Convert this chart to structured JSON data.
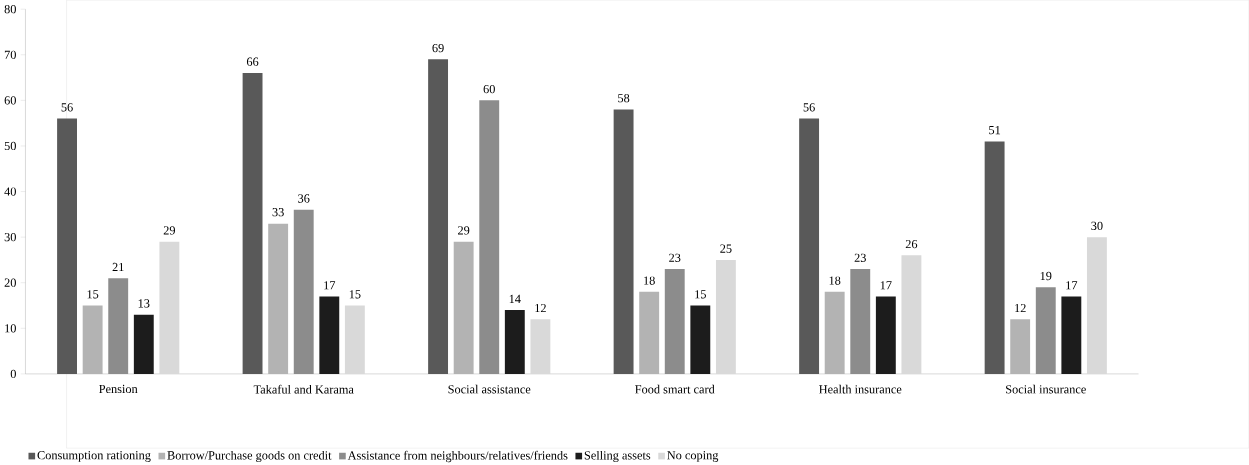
{
  "chart_data": {
    "type": "bar",
    "categories": [
      "Pension",
      "Takaful and Karama",
      "Social assistance",
      "Food smart card",
      "Health insurance",
      "Social insurance"
    ],
    "series": [
      {
        "name": "Consumption rationing",
        "color": "#595959",
        "values": [
          56,
          66,
          69,
          58,
          56,
          51
        ]
      },
      {
        "name": "Borrow/Purchase goods on credit",
        "color": "#b3b3b3",
        "values": [
          15,
          33,
          29,
          18,
          18,
          12
        ]
      },
      {
        "name": "Assistance from neighbours/relatives/friends",
        "color": "#8c8c8c",
        "values": [
          21,
          36,
          60,
          23,
          23,
          19
        ]
      },
      {
        "name": "Selling assets",
        "color": "#1c1c1c",
        "values": [
          13,
          17,
          14,
          15,
          17,
          17
        ]
      },
      {
        "name": "No coping",
        "color": "#d9d9d9",
        "values": [
          29,
          15,
          12,
          25,
          26,
          30
        ]
      }
    ],
    "ylim": [
      0,
      80
    ],
    "yticks": [
      0,
      10,
      20,
      30,
      40,
      50,
      60,
      70,
      80
    ],
    "data_labels": true,
    "grid": false,
    "legend": "bottom"
  }
}
